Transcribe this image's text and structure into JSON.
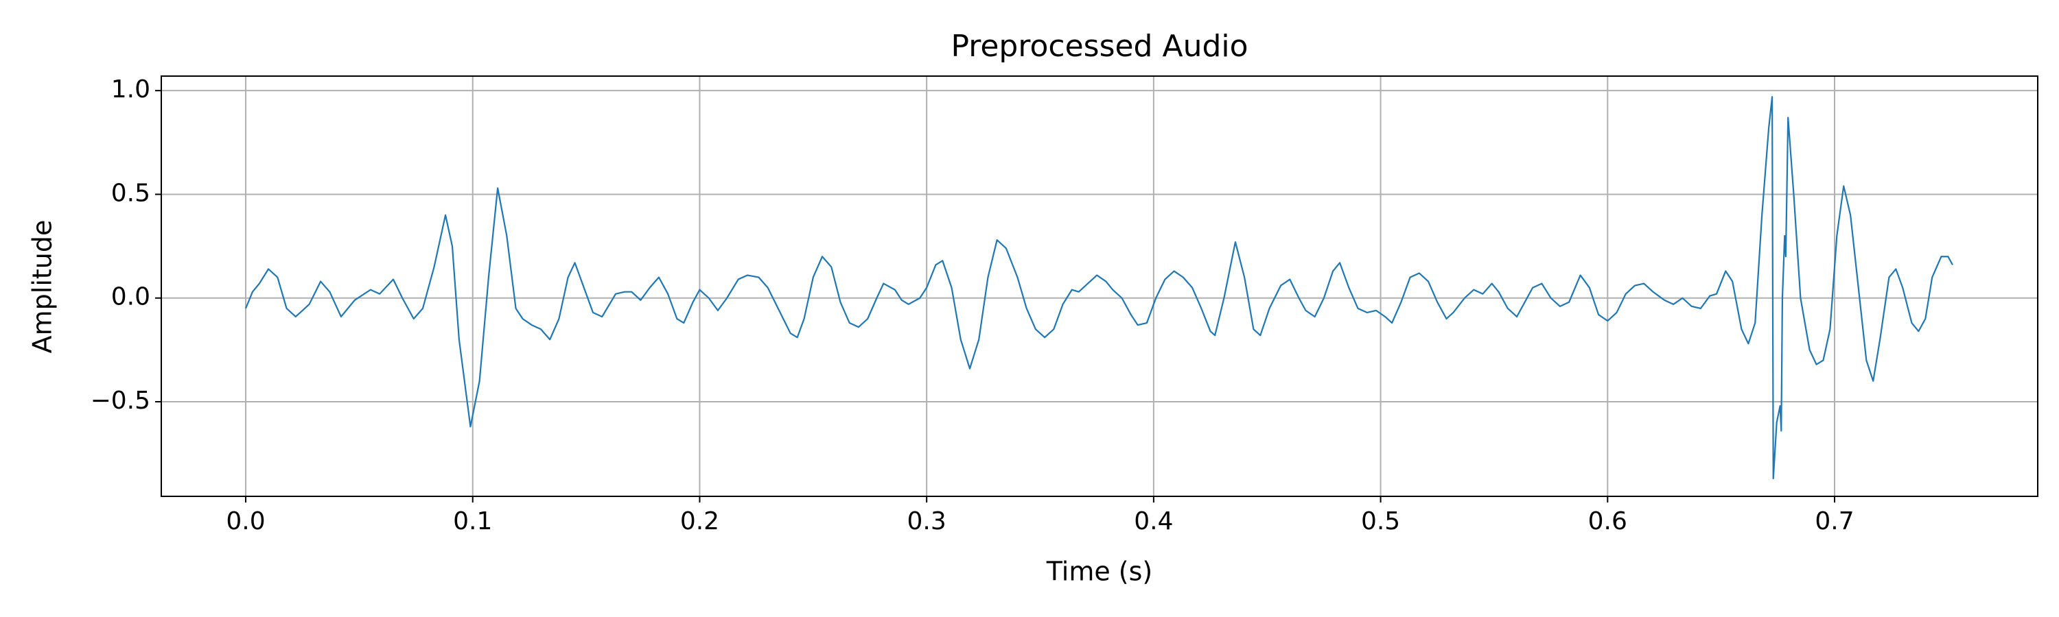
{
  "chart_data": {
    "type": "line",
    "title": "Preprocessed Audio",
    "x_label": "Time (s)",
    "y_label": "Amplitude",
    "color": "#1f77b4",
    "grid": true,
    "xlim": [
      -0.0372,
      0.7895
    ],
    "ylim": [
      -0.956,
      1.07
    ],
    "xticks": [
      {
        "value": 0,
        "label": "0.0"
      },
      0.1,
      0.2,
      0.3,
      0.4,
      0.5,
      0.6,
      0.7
    ],
    "yticks": [
      {
        "value": -0.5,
        "label": "−0.5"
      },
      {
        "value": 0,
        "label": "0.0"
      },
      0.5,
      {
        "value": 1,
        "label": "1.0"
      }
    ],
    "x": [
      0,
      0.003,
      0.006,
      0.01,
      0.014,
      0.018,
      0.022,
      0.025,
      0.028,
      0.033,
      0.037,
      0.042,
      0.048,
      0.055,
      0.059,
      0.065,
      0.069,
      0.074,
      0.078,
      0.083,
      0.088,
      0.091,
      0.094,
      0.099,
      0.103,
      0.107,
      0.111,
      0.115,
      0.119,
      0.122,
      0.126,
      0.13,
      0.134,
      0.138,
      0.142,
      0.145,
      0.149,
      0.153,
      0.157,
      0.163,
      0.167,
      0.17,
      0.174,
      0.178,
      0.182,
      0.186,
      0.19,
      0.193,
      0.197,
      0.2,
      0.204,
      0.208,
      0.212,
      0.217,
      0.221,
      0.226,
      0.23,
      0.235,
      0.24,
      0.243,
      0.246,
      0.25,
      0.254,
      0.258,
      0.262,
      0.266,
      0.27,
      0.274,
      0.278,
      0.281,
      0.286,
      0.289,
      0.292,
      0.297,
      0.3,
      0.304,
      0.307,
      0.311,
      0.315,
      0.319,
      0.323,
      0.327,
      0.331,
      0.335,
      0.34,
      0.344,
      0.348,
      0.352,
      0.356,
      0.36,
      0.364,
      0.367,
      0.371,
      0.375,
      0.379,
      0.382,
      0.386,
      0.39,
      0.393,
      0.397,
      0.401,
      0.405,
      0.409,
      0.413,
      0.417,
      0.421,
      0.425,
      0.427,
      0.431,
      0.436,
      0.44,
      0.444,
      0.447,
      0.451,
      0.456,
      0.46,
      0.464,
      0.467,
      0.471,
      0.475,
      0.479,
      0.482,
      0.486,
      0.49,
      0.494,
      0.498,
      0.502,
      0.505,
      0.509,
      0.513,
      0.517,
      0.521,
      0.525,
      0.529,
      0.532,
      0.537,
      0.541,
      0.545,
      0.549,
      0.552,
      0.556,
      0.56,
      0.563,
      0.567,
      0.571,
      0.575,
      0.579,
      0.583,
      0.588,
      0.592,
      0.596,
      0.6,
      0.604,
      0.608,
      0.612,
      0.616,
      0.62,
      0.625,
      0.629,
      0.633,
      0.637,
      0.641,
      0.645,
      0.648,
      0.652,
      0.655,
      0.659,
      0.662,
      0.665,
      0.668,
      0.671,
      0.6725,
      0.673,
      0.6745,
      0.676,
      0.6765,
      0.677,
      0.678,
      0.6785,
      0.6795,
      0.682,
      0.685,
      0.689,
      0.692,
      0.695,
      0.698,
      0.701,
      0.704,
      0.707,
      0.711,
      0.714,
      0.717,
      0.72,
      0.724,
      0.727,
      0.73,
      0.734,
      0.737,
      0.74,
      0.743,
      0.747,
      0.75,
      0.752
    ],
    "values": [
      -0.05,
      0.03,
      0.07,
      0.14,
      0.1,
      -0.05,
      -0.09,
      -0.06,
      -0.03,
      0.08,
      0.03,
      -0.09,
      -0.01,
      0.04,
      0.02,
      0.09,
      0.0,
      -0.1,
      -0.05,
      0.15,
      0.4,
      0.25,
      -0.2,
      -0.62,
      -0.4,
      0.1,
      0.53,
      0.3,
      -0.05,
      -0.1,
      -0.13,
      -0.15,
      -0.2,
      -0.1,
      0.1,
      0.17,
      0.05,
      -0.07,
      -0.09,
      0.02,
      0.03,
      0.03,
      -0.01,
      0.05,
      0.1,
      0.02,
      -0.1,
      -0.12,
      -0.02,
      0.04,
      0.0,
      -0.06,
      0.0,
      0.09,
      0.11,
      0.1,
      0.05,
      -0.06,
      -0.17,
      -0.19,
      -0.1,
      0.1,
      0.2,
      0.15,
      -0.02,
      -0.12,
      -0.14,
      -0.1,
      0.0,
      0.07,
      0.04,
      -0.01,
      -0.03,
      0.0,
      0.05,
      0.16,
      0.18,
      0.05,
      -0.2,
      -0.34,
      -0.2,
      0.1,
      0.28,
      0.24,
      0.1,
      -0.05,
      -0.15,
      -0.19,
      -0.15,
      -0.03,
      0.04,
      0.03,
      0.07,
      0.11,
      0.08,
      0.04,
      0.0,
      -0.08,
      -0.13,
      -0.12,
      0.0,
      0.09,
      0.13,
      0.1,
      0.05,
      -0.05,
      -0.16,
      -0.18,
      0.0,
      0.27,
      0.1,
      -0.15,
      -0.18,
      -0.05,
      0.06,
      0.09,
      0.0,
      -0.06,
      -0.09,
      0.0,
      0.13,
      0.17,
      0.05,
      -0.05,
      -0.07,
      -0.06,
      -0.09,
      -0.12,
      -0.02,
      0.1,
      0.12,
      0.08,
      -0.02,
      -0.1,
      -0.07,
      0.0,
      0.04,
      0.02,
      0.07,
      0.03,
      -0.05,
      -0.09,
      -0.03,
      0.05,
      0.07,
      0.0,
      -0.04,
      -0.02,
      0.11,
      0.05,
      -0.08,
      -0.11,
      -0.07,
      0.02,
      0.06,
      0.07,
      0.03,
      -0.01,
      -0.03,
      0.0,
      -0.04,
      -0.05,
      0.01,
      0.02,
      0.13,
      0.08,
      -0.15,
      -0.22,
      -0.12,
      0.4,
      0.82,
      0.97,
      -0.87,
      -0.6,
      -0.52,
      -0.64,
      0.0,
      0.3,
      0.2,
      0.87,
      0.5,
      0.0,
      -0.25,
      -0.32,
      -0.3,
      -0.15,
      0.3,
      0.54,
      0.4,
      0.0,
      -0.3,
      -0.4,
      -0.2,
      0.1,
      0.14,
      0.05,
      -0.12,
      -0.16,
      -0.1,
      0.1,
      0.2,
      0.2,
      0.16
    ]
  }
}
